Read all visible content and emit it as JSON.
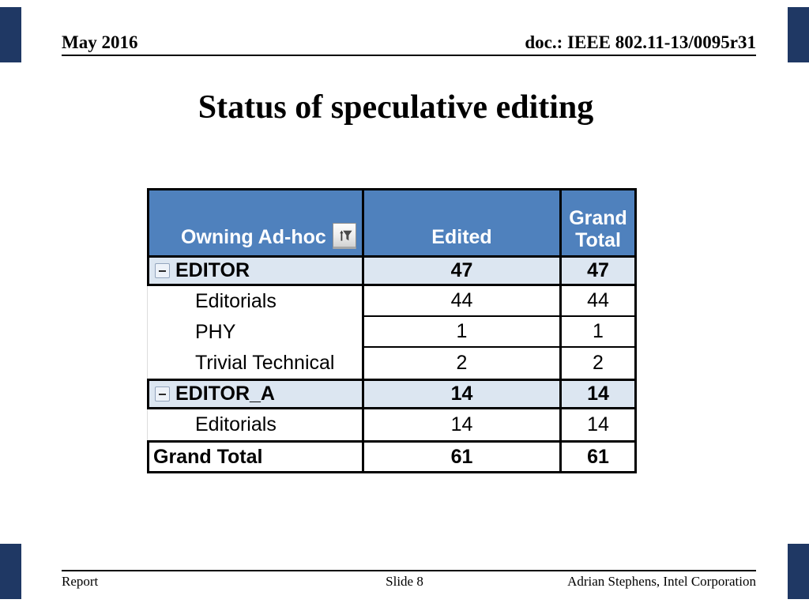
{
  "slide": {
    "header": {
      "left": "May 2016",
      "right": "doc.: IEEE 802.11-13/0095r31"
    },
    "title": "Status of speculative editing",
    "footer": {
      "left": "Report",
      "center": "Slide 8",
      "right": "Adrian Stephens, Intel Corporation"
    },
    "corner_bar_color": "#1F3864"
  },
  "table": {
    "columns": {
      "col1": "Owning Ad-hoc",
      "col2": "Edited",
      "col3_line1": "Grand",
      "col3_line2": "Total"
    },
    "header_bg": "#4F81BD",
    "header_text_color": "#FFFFFF",
    "subtotal_bg": "#DCE6F1",
    "border_color": "#000000",
    "filter_icon": "pivot-filter-funnel-icon",
    "collapse_icon": "collapse-minus-icon",
    "rows": [
      {
        "type": "subtotal",
        "label": "EDITOR",
        "edited": "47",
        "grand_total": "47"
      },
      {
        "type": "detail",
        "label": "Editorials",
        "edited": "44",
        "grand_total": "44"
      },
      {
        "type": "detail",
        "label": "PHY",
        "edited": "1",
        "grand_total": "1"
      },
      {
        "type": "detail",
        "label": "Trivial Technical",
        "edited": "2",
        "grand_total": "2"
      },
      {
        "type": "subtotal",
        "label": "EDITOR_A",
        "edited": "14",
        "grand_total": "14"
      },
      {
        "type": "detail",
        "label": "Editorials",
        "edited": "14",
        "grand_total": "14"
      },
      {
        "type": "total",
        "label": "Grand Total",
        "edited": "61",
        "grand_total": "61"
      }
    ]
  }
}
